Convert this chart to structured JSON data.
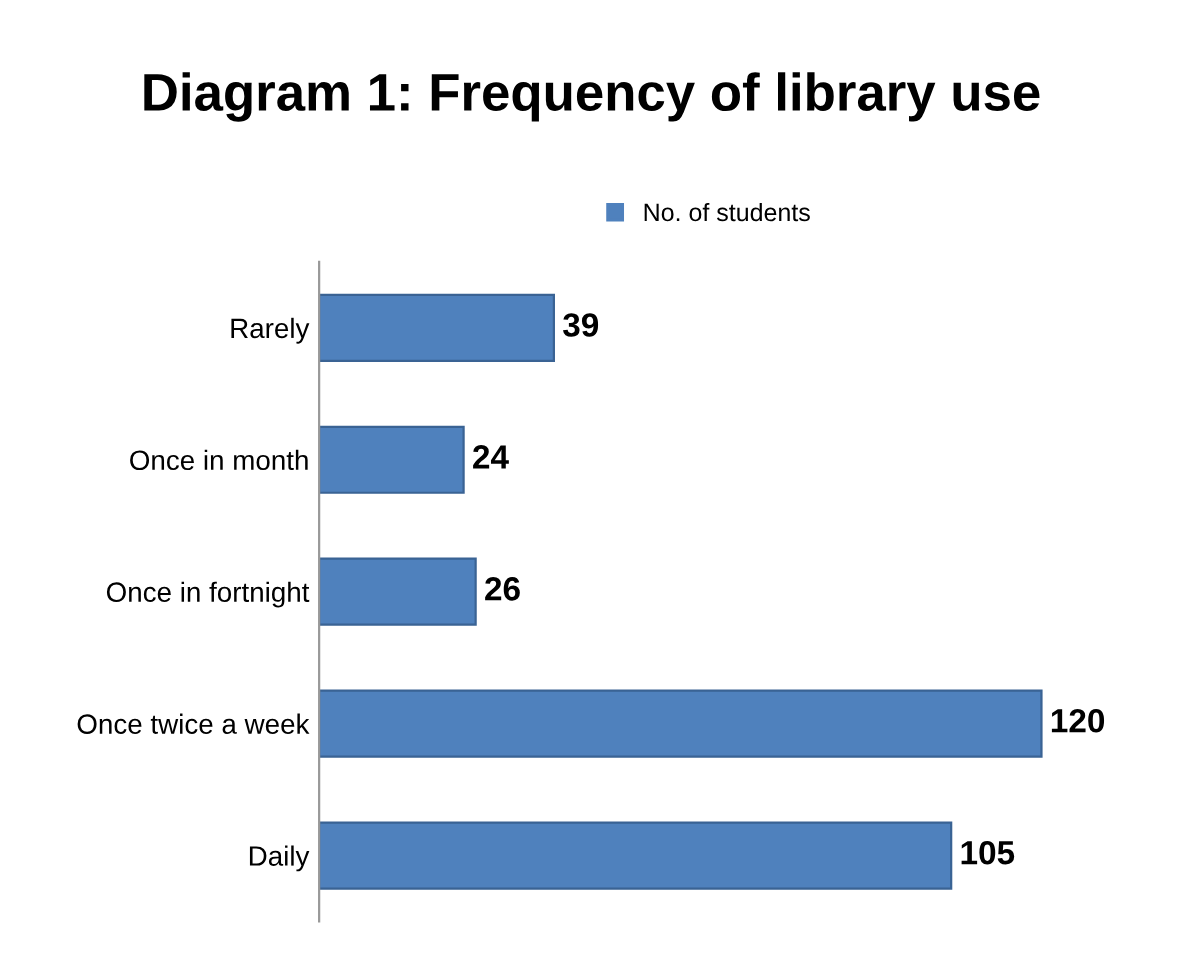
{
  "chart_data": {
    "type": "bar",
    "orientation": "horizontal",
    "title": "Diagram 1: Frequency of library use",
    "categories": [
      "Rarely",
      "Once in month",
      "Once in fortnight",
      "Once twice a week",
      "Daily"
    ],
    "series": [
      {
        "name": "No. of students",
        "color": "#4f81bd",
        "values": [
          39,
          24,
          26,
          120,
          105
        ]
      }
    ],
    "data_labels": true,
    "legend": "top",
    "grid": false,
    "tick_labels": "y"
  }
}
